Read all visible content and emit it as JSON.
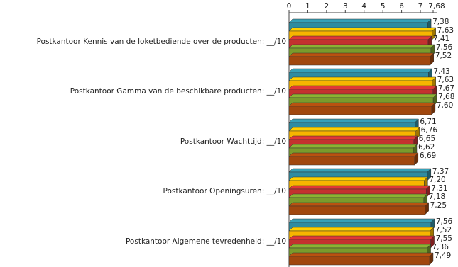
{
  "chart_data": {
    "type": "bar",
    "orientation": "horizontal",
    "three_d": true,
    "categories": [
      "Postkantoor  Kennis van de loketbediende over de  producten:  __/10",
      "Postkantoor  Gamma van de beschikbare producten:  __/10",
      "Postkantoor  Wachttijd:  __/10",
      "Postkantoor  Openingsuren:  __/10",
      "Postkantoor  Algemene tevredenheid:  __/10"
    ],
    "series": [
      {
        "color": "#2f8ca0",
        "values": [
          7.38,
          7.43,
          6.71,
          7.37,
          7.56
        ],
        "value_labels": [
          "7,38",
          "7,43",
          "6,71",
          "7,37",
          "7,56"
        ]
      },
      {
        "color": "#f7b500",
        "values": [
          7.63,
          7.63,
          6.76,
          7.2,
          7.52
        ],
        "value_labels": [
          "7,63",
          "7,63",
          "6,76",
          "7,20",
          "7,52"
        ]
      },
      {
        "color": "#c4312f",
        "values": [
          7.41,
          7.67,
          6.65,
          7.31,
          7.55
        ],
        "value_labels": [
          "7,41",
          "7,67",
          "6,65",
          "7,31",
          "7,55"
        ]
      },
      {
        "color": "#7a9b2c",
        "values": [
          7.56,
          7.68,
          6.62,
          7.18,
          7.36
        ],
        "value_labels": [
          "7,56",
          "7,68",
          "6,62",
          "7,18",
          "7,36"
        ]
      },
      {
        "color": "#a1470e",
        "values": [
          7.52,
          7.6,
          6.69,
          7.25,
          7.49
        ],
        "value_labels": [
          "7,52",
          "7,60",
          "6,69",
          "7,25",
          "7,49"
        ]
      }
    ],
    "xlim": [
      0,
      7.68
    ],
    "xticks": [
      0,
      1,
      2,
      3,
      4,
      5,
      6,
      7,
      {
        "value": 7.68,
        "label": "7,68"
      }
    ]
  }
}
